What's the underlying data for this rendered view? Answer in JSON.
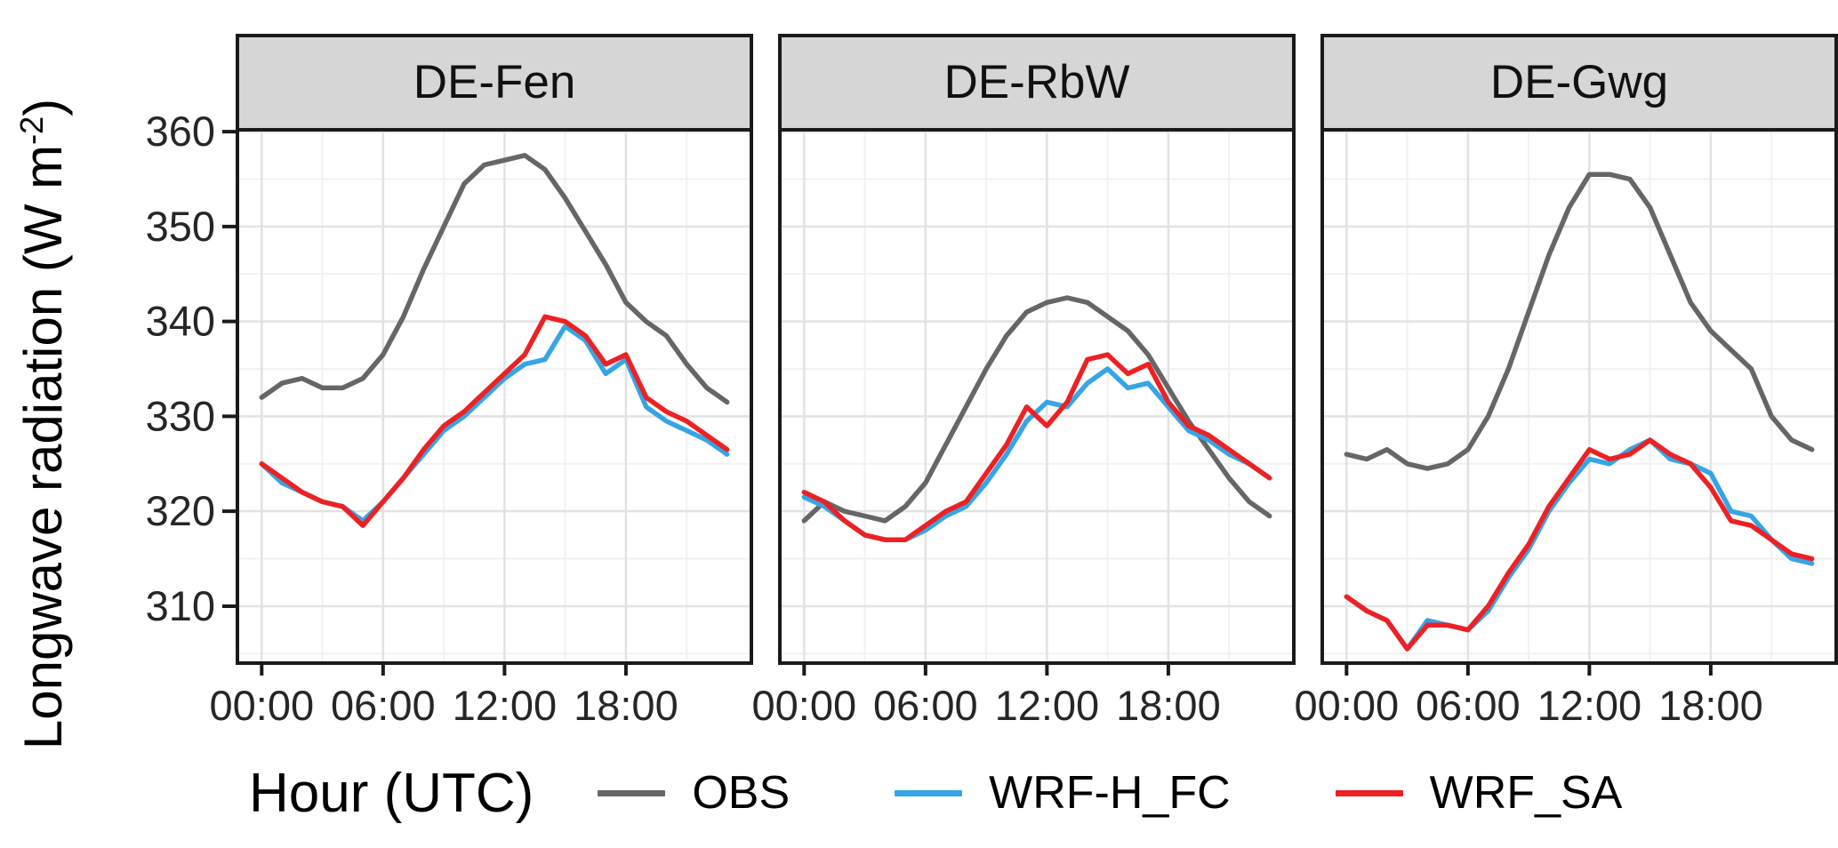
{
  "figure": {
    "x_axis_title": "Hour (UTC)",
    "y_title_pre": "Longwave radiation (W m",
    "y_title_sup": "-2",
    "y_title_post": ")"
  },
  "legend": {
    "position": "bottom",
    "entries": [
      {
        "label": "OBS",
        "color": "#666666"
      },
      {
        "label": "WRF-H_FC",
        "color": "#35A5E6"
      },
      {
        "label": "WRF_SA",
        "color": "#ED2124"
      }
    ]
  },
  "chart_data": {
    "type": "line",
    "title": "",
    "xlabel": "Hour (UTC)",
    "ylabel": "Longwave radiation (W m^-2)",
    "x_hours": [
      0,
      1,
      2,
      3,
      4,
      5,
      6,
      7,
      8,
      9,
      10,
      11,
      12,
      13,
      14,
      15,
      16,
      17,
      18,
      19,
      20,
      21,
      22,
      23
    ],
    "x_ticks": [
      {
        "hour": 0,
        "label": "00:00"
      },
      {
        "hour": 6,
        "label": "06:00"
      },
      {
        "hour": 12,
        "label": "12:00"
      },
      {
        "hour": 18,
        "label": "18:00"
      }
    ],
    "x_minor": [
      3,
      9,
      15,
      21
    ],
    "y_ticks": [
      310,
      320,
      330,
      340,
      350,
      360
    ],
    "y_minor": [
      305,
      315,
      325,
      335,
      345,
      355
    ],
    "ylim": [
      304,
      360.2
    ],
    "xlim": [
      -1.2,
      24.2
    ],
    "grid": true,
    "legend_position": "bottom",
    "facets": [
      {
        "title": "DE-Fen",
        "series": [
          {
            "name": "OBS",
            "color": "#666666",
            "values": [
              332,
              333.5,
              334,
              333,
              333,
              334,
              336.5,
              340.5,
              345.5,
              350,
              354.5,
              356.5,
              357,
              357.5,
              356,
              353,
              349.5,
              346,
              342,
              340,
              338.5,
              335.5,
              333,
              331.5
            ]
          },
          {
            "name": "WRF-H_FC",
            "color": "#35A5E6",
            "values": [
              325,
              323,
              322,
              321,
              320.5,
              319,
              321,
              323.5,
              326,
              328.5,
              330,
              332,
              334,
              335.5,
              336,
              339.5,
              338,
              334.5,
              336,
              331,
              329.5,
              328.5,
              327.5,
              326
            ]
          },
          {
            "name": "WRF_SA",
            "color": "#ED2124",
            "values": [
              325,
              323.5,
              322,
              321,
              320.5,
              318.5,
              321,
              323.5,
              326.5,
              329,
              330.5,
              332.5,
              334.5,
              336.5,
              340.5,
              340,
              338.5,
              335.5,
              336.5,
              332,
              330.5,
              329.5,
              328,
              326.5
            ]
          }
        ]
      },
      {
        "title": "DE-RbW",
        "series": [
          {
            "name": "OBS",
            "color": "#666666",
            "values": [
              319,
              321,
              320,
              319.5,
              319,
              320.5,
              323,
              327,
              331,
              335,
              338.5,
              341,
              342,
              342.5,
              342,
              340.5,
              339,
              336.5,
              333,
              329.5,
              326.5,
              323.5,
              321,
              319.5
            ]
          },
          {
            "name": "WRF-H_FC",
            "color": "#35A5E6",
            "values": [
              321.5,
              320.5,
              319,
              317.5,
              317,
              317,
              318,
              319.5,
              320.5,
              323,
              326,
              329.5,
              331.5,
              331,
              333.5,
              335,
              333,
              333.5,
              331,
              328.5,
              327.5,
              326,
              325,
              323.5
            ]
          },
          {
            "name": "WRF_SA",
            "color": "#ED2124",
            "values": [
              322,
              321,
              319,
              317.5,
              317,
              317,
              318.5,
              320,
              321,
              324,
              327,
              331,
              329,
              331.5,
              336,
              336.5,
              334.5,
              335.5,
              331.5,
              329,
              328,
              326.5,
              325,
              323.5
            ]
          }
        ]
      },
      {
        "title": "DE-Gwg",
        "series": [
          {
            "name": "OBS",
            "color": "#666666",
            "values": [
              326,
              325.5,
              326.5,
              325,
              324.5,
              325,
              326.5,
              330,
              335,
              341,
              347,
              352,
              355.5,
              355.5,
              355,
              352,
              347,
              342,
              339,
              337,
              335,
              330,
              327.5,
              326.5
            ]
          },
          {
            "name": "WRF-H_FC",
            "color": "#35A5E6",
            "values": [
              311,
              309.5,
              308.5,
              305.5,
              308.5,
              308,
              307.5,
              309.5,
              313,
              316,
              320,
              323,
              325.5,
              325,
              326.5,
              327.5,
              325.5,
              325,
              324,
              320,
              319.5,
              317,
              315,
              314.5
            ]
          },
          {
            "name": "WRF_SA",
            "color": "#ED2124",
            "values": [
              311,
              309.5,
              308.5,
              305.5,
              308,
              308,
              307.5,
              310,
              313.5,
              316.5,
              320.5,
              323.5,
              326.5,
              325.5,
              326,
              327.5,
              326,
              325,
              322.5,
              319,
              318.5,
              317,
              315.5,
              315
            ]
          }
        ]
      }
    ]
  }
}
